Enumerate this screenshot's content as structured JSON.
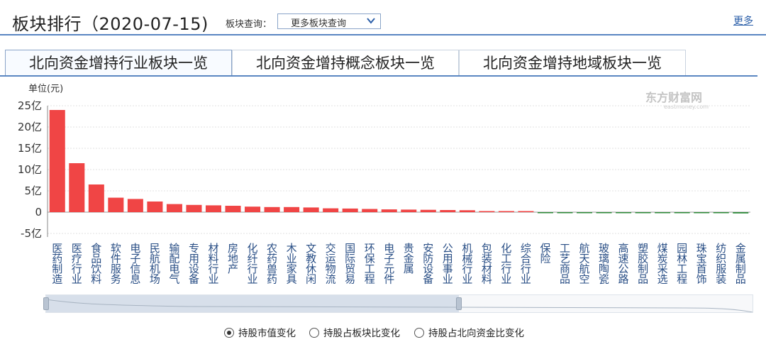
{
  "header": {
    "title": "板块排行（2020-07-15)",
    "query_label": "板块查询：",
    "query_select_value": "更多板块查询",
    "more_link": "更多"
  },
  "tabs": [
    {
      "label": "北向资金增持行业板块一览",
      "active": true
    },
    {
      "label": "北向资金增持概念板块一览",
      "active": false
    },
    {
      "label": "北向资金增持地域板块一览",
      "active": false
    }
  ],
  "watermark": {
    "brand": "东方财富网",
    "domain": "eastmoney.com"
  },
  "radios": [
    {
      "label": "持股市值变化",
      "checked": true
    },
    {
      "label": "持股占板块比变化",
      "checked": false
    },
    {
      "label": "持股占北向资金比变化",
      "checked": false
    }
  ],
  "chart_data": {
    "type": "bar",
    "unit_label": "单位(元)",
    "ylim": [
      -5,
      25
    ],
    "y_ticks": [
      25,
      20,
      15,
      10,
      5,
      0,
      -5
    ],
    "y_tick_labels": [
      "25亿",
      "20亿",
      "15亿",
      "10亿",
      "5亿",
      "0",
      "-5亿"
    ],
    "grid": true,
    "colors": {
      "positive": "#f04545",
      "negative": "#2e8b3a"
    },
    "categories": [
      "医药制造",
      "医疗行业",
      "食品饮料",
      "软件服务",
      "电子信息",
      "民航机场",
      "输配电气",
      "专用设备",
      "材料行业",
      "房地产",
      "化纤行业",
      "农药兽药",
      "木业家具",
      "文教休闲",
      "交运物流",
      "国际贸易",
      "环保工程",
      "电子元件",
      "贵金属",
      "安防设备",
      "公用事业",
      "机械行业",
      "包装材料",
      "化工行业",
      "综合行业",
      "保险",
      "工艺商品",
      "航天航空",
      "玻璃陶瓷",
      "高速公路",
      "塑胶制品",
      "煤炭采选",
      "园林工程",
      "珠宝首饰",
      "纺织服装",
      "金属制品"
    ],
    "values": [
      24.0,
      11.5,
      6.5,
      3.4,
      3.1,
      2.5,
      1.9,
      1.7,
      1.6,
      1.5,
      1.3,
      1.2,
      1.2,
      1.1,
      0.9,
      0.85,
      0.75,
      0.65,
      0.6,
      0.55,
      0.5,
      0.45,
      0.2,
      0.15,
      0.1,
      -0.03,
      -0.04,
      -0.05,
      -0.05,
      -0.06,
      -0.07,
      -0.08,
      -0.15,
      -0.2,
      -0.25,
      -0.3
    ]
  }
}
